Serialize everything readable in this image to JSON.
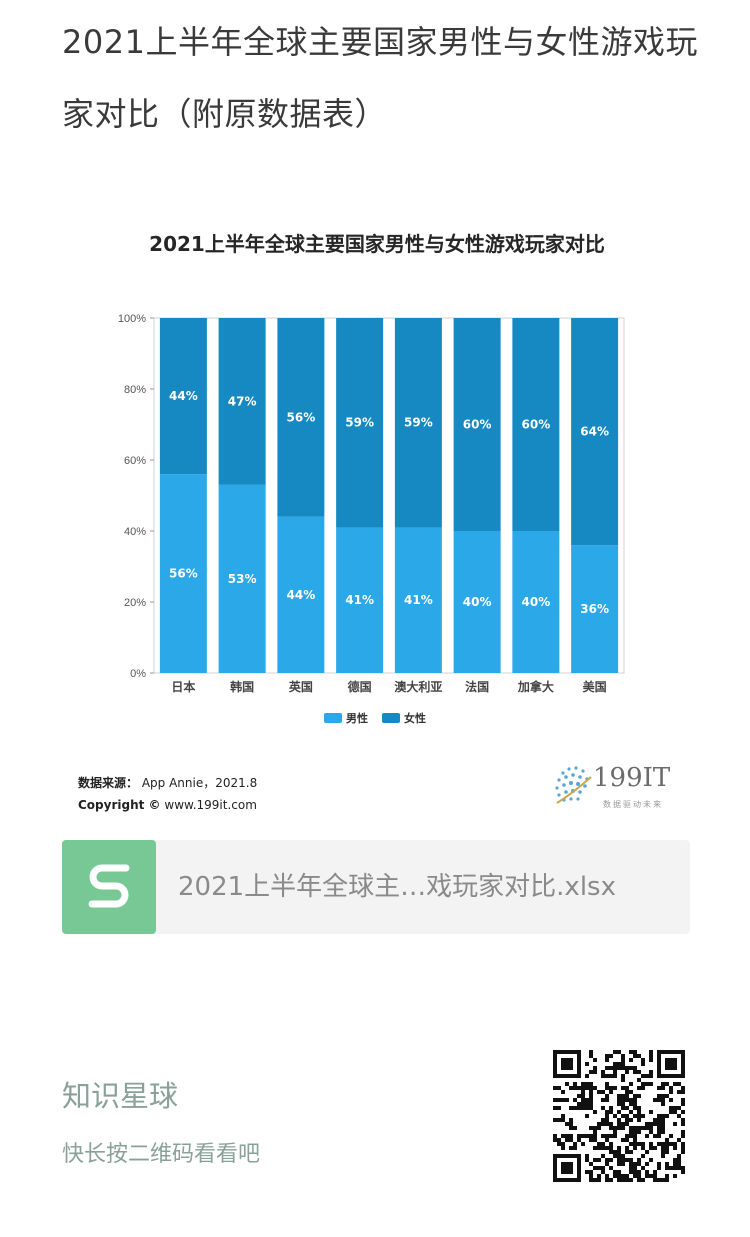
{
  "article": {
    "title": "2021上半年全球主要国家男性与女性游戏玩家对比（附原数据表）"
  },
  "chart_data": {
    "type": "bar",
    "stacked": true,
    "title": "2021上半年全球主要国家男性与女性游戏玩家对比",
    "categories": [
      "日本",
      "韩国",
      "英国",
      "德国",
      "澳大利亚",
      "法国",
      "加拿大",
      "美国"
    ],
    "series": [
      {
        "name": "男性",
        "values": [
          56,
          53,
          44,
          41,
          41,
          40,
          40,
          36
        ],
        "color": "#2ba8e8"
      },
      {
        "name": "女性",
        "values": [
          44,
          47,
          56,
          59,
          59,
          60,
          60,
          64
        ],
        "color": "#1689c3"
      }
    ],
    "y_ticks": [
      "0%",
      "20%",
      "40%",
      "60%",
      "80%",
      "100%"
    ],
    "ylim": [
      0,
      100
    ],
    "legend_position": "bottom-center",
    "grid": false
  },
  "source": {
    "label": "数据来源：",
    "value": "App Annie，2021.8",
    "copyright_label": "Copyright ©",
    "copyright_value": "www.199it.com"
  },
  "brand": {
    "name": "199IT",
    "tagline": "数据驱动未来",
    "icon": "globe-dots-logo"
  },
  "file": {
    "icon": "spreadsheet-s-icon",
    "name": "2021上半年全球主…戏玩家对比.xlsx"
  },
  "promo": {
    "title": "知识星球",
    "subtitle": "快长按二维码看看吧"
  }
}
